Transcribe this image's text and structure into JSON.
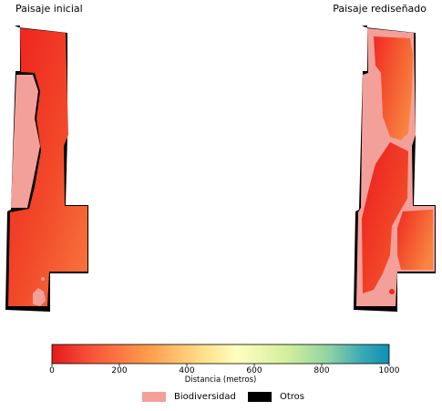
{
  "chart_data": {
    "type": "heatmap",
    "panels": [
      {
        "title": "Paisaje inicial"
      },
      {
        "title": "Paisaje rediseñado"
      }
    ],
    "colorbar": {
      "label": "Distancia (metros)",
      "min": 0,
      "max": 1000,
      "ticks": [
        0,
        200,
        400,
        600,
        800,
        1000
      ],
      "tick_labels": [
        "0",
        "200",
        "400",
        "600",
        "800",
        "1000"
      ],
      "colormap": [
        "#e31a1c",
        "#fd8d3c",
        "#fee08b",
        "#ffffbf",
        "#a6d96a",
        "#0f8fb5"
      ]
    },
    "legend": [
      {
        "label": "Biodiversidad",
        "color": "#f4a09a"
      },
      {
        "label": "Otros",
        "color": "#000000"
      }
    ],
    "colors": {
      "field_red": "#ef2a21",
      "field_orange": "#f7743d",
      "biodiversity": "#f4a09a",
      "other": "#000000"
    }
  }
}
